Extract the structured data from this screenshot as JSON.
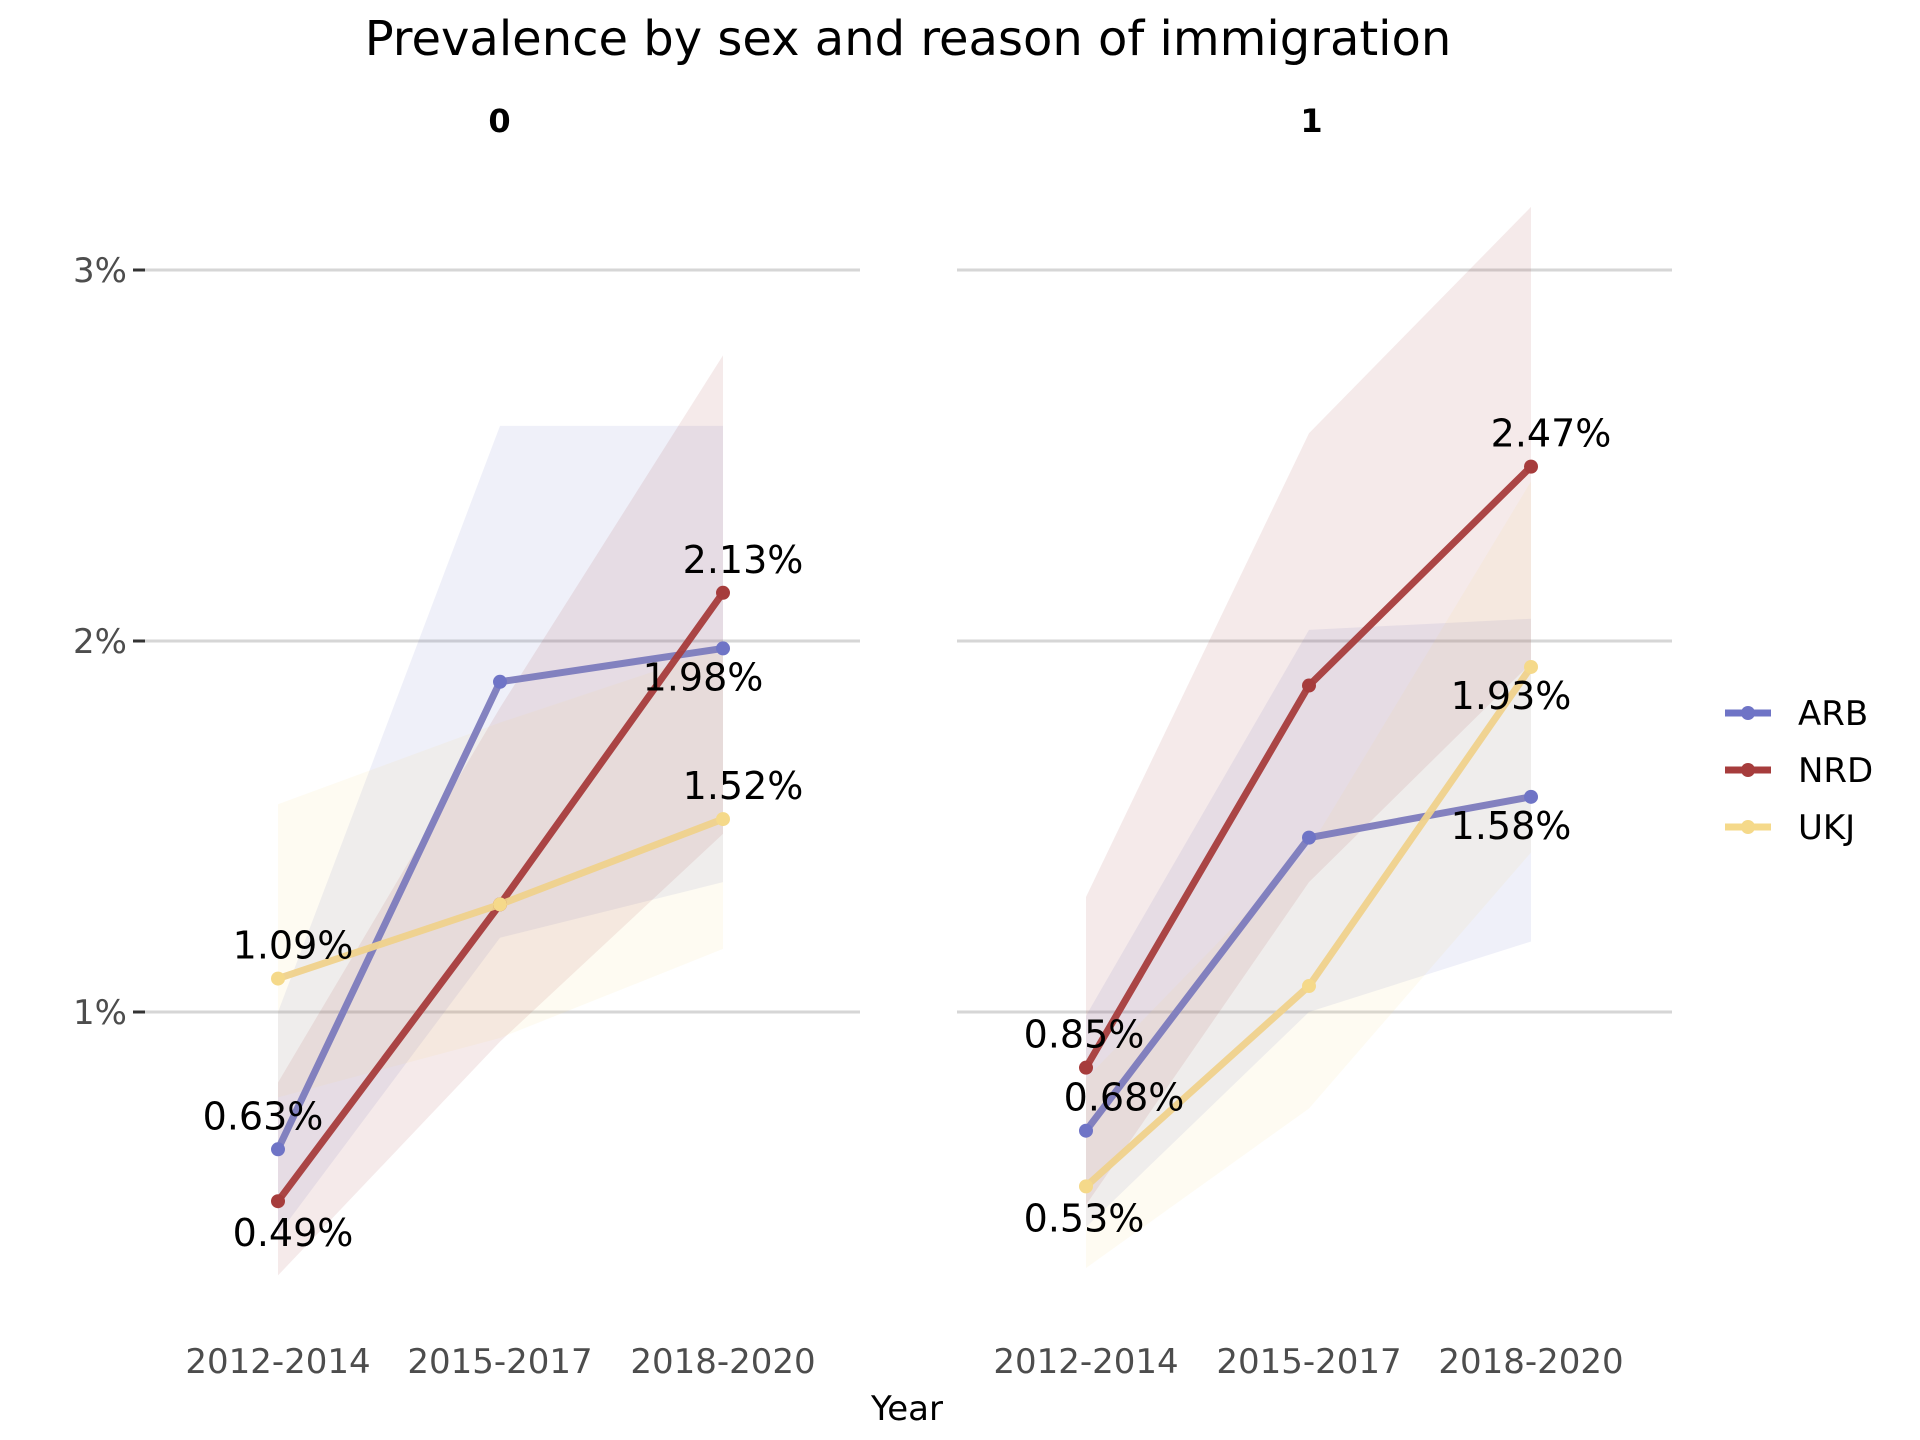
{
  "chart_data": {
    "type": "line",
    "title": "Prevalence by sex and reason of immigration",
    "xlabel": "Year",
    "ylabel": "",
    "ylim": [
      0.3,
      3.2
    ],
    "y_ticks": [
      1,
      2,
      3
    ],
    "y_tick_labels": [
      "1%",
      "2%",
      "3%"
    ],
    "grid": "horizontal-major",
    "legend_position": "right",
    "categories": [
      "2012-2014",
      "2015-2017",
      "2018-2020"
    ],
    "series_colors": {
      "ARB": "#6f74c6",
      "NRD": "#a63c3c",
      "UKJ": "#f5d98a"
    },
    "line_colors": {
      "ARB": "#7c7bbd",
      "NRD": "#a63c3c",
      "UKJ": "#efd28c"
    },
    "legend": [
      {
        "name": "ARB",
        "color": "#6f74c6"
      },
      {
        "name": "NRD",
        "color": "#a63c3c"
      },
      {
        "name": "UKJ",
        "color": "#f5d98a"
      }
    ],
    "panels": [
      {
        "label": "0",
        "series": [
          {
            "name": "ARB",
            "values": [
              0.63,
              1.89,
              1.98
            ],
            "ci_lower": [
              0.4,
              1.2,
              1.35
            ],
            "ci_upper": [
              1.0,
              2.58,
              2.58
            ],
            "labels": [
              "0.63%",
              null,
              "1.98%"
            ]
          },
          {
            "name": "NRD",
            "values": [
              0.49,
              1.29,
              2.13
            ],
            "ci_lower": [
              0.29,
              0.92,
              1.48
            ],
            "ci_upper": [
              0.81,
              1.82,
              2.77
            ],
            "labels": [
              "0.49%",
              null,
              "2.13%"
            ]
          },
          {
            "name": "UKJ",
            "values": [
              1.09,
              1.29,
              1.52
            ],
            "ci_lower": [
              0.77,
              0.93,
              1.17
            ],
            "ci_upper": [
              1.56,
              1.78,
              1.98
            ],
            "labels": [
              "1.09%",
              null,
              "1.52%"
            ]
          }
        ]
      },
      {
        "label": "1",
        "series": [
          {
            "name": "ARB",
            "values": [
              0.68,
              1.47,
              1.58
            ],
            "ci_lower": [
              0.42,
              1.0,
              1.19
            ],
            "ci_upper": [
              0.99,
              2.03,
              2.06
            ],
            "labels": [
              "0.68%",
              null,
              "1.58%"
            ]
          },
          {
            "name": "NRD",
            "values": [
              0.85,
              1.88,
              2.47
            ],
            "ci_lower": [
              0.48,
              1.35,
              1.94
            ],
            "ci_upper": [
              1.31,
              2.56,
              3.17
            ],
            "labels": [
              "0.85%",
              null,
              "2.47%"
            ]
          },
          {
            "name": "UKJ",
            "values": [
              0.53,
              1.07,
              1.93
            ],
            "ci_lower": [
              0.31,
              0.74,
              1.43
            ],
            "ci_upper": [
              0.82,
              1.44,
              2.43
            ],
            "labels": [
              "0.53%",
              null,
              "1.93%"
            ]
          }
        ]
      }
    ]
  }
}
